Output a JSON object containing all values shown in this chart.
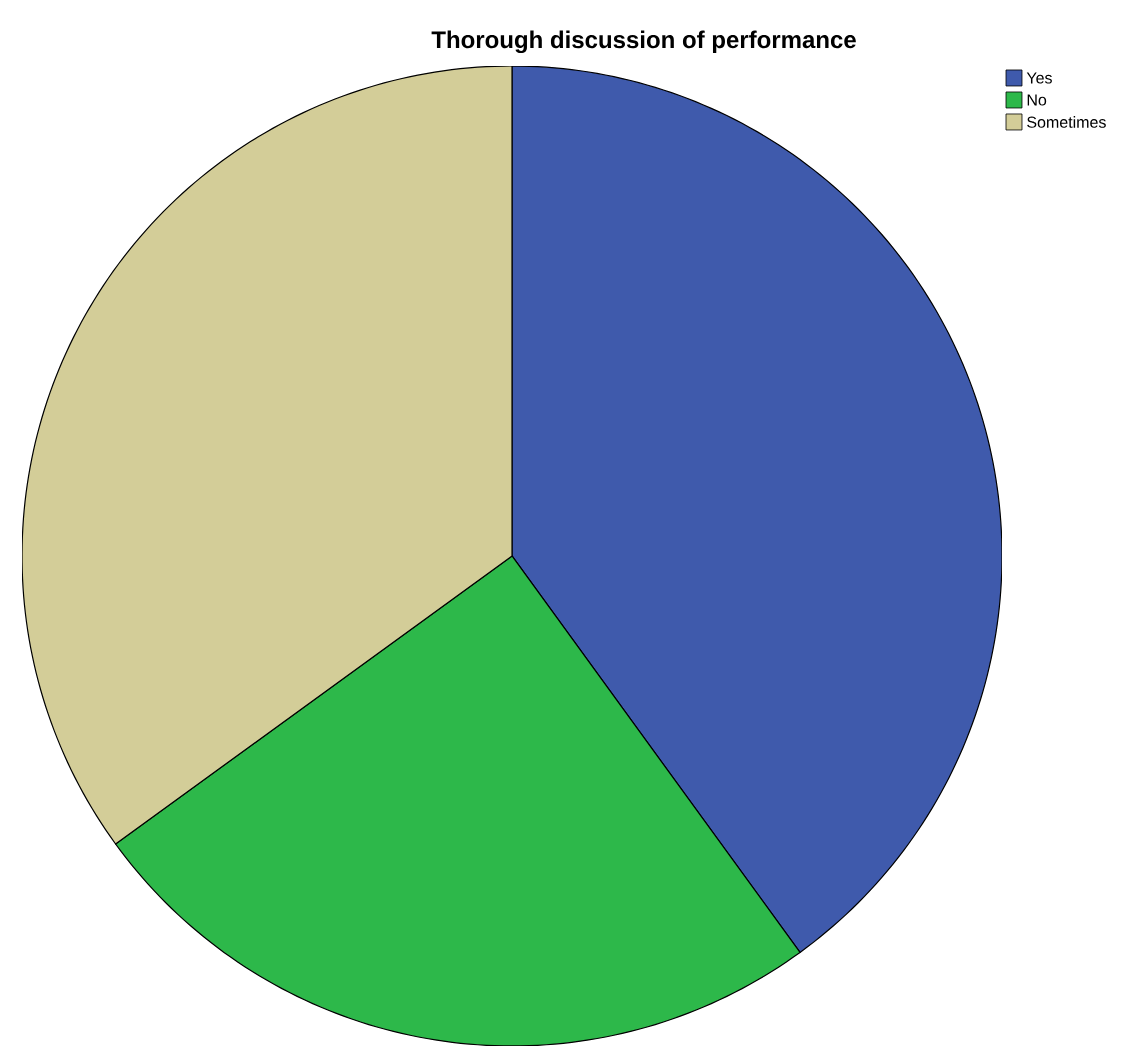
{
  "chart_data": {
    "type": "pie",
    "title": "Thorough discussion of performance",
    "categories": [
      "Yes",
      "No",
      "Sometimes"
    ],
    "values": [
      40,
      25,
      35
    ],
    "colors": [
      "#3f5aac",
      "#2db84a",
      "#d3cd98"
    ],
    "legend": "top right"
  }
}
